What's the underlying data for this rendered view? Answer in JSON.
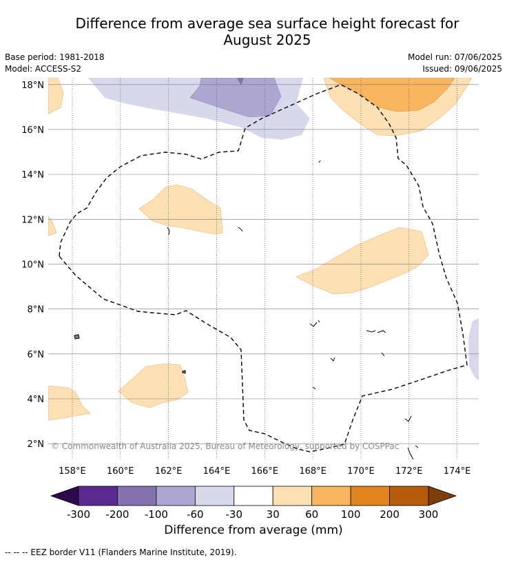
{
  "title_line1": "Difference from average sea surface height forecast for",
  "title_line2": "August 2025",
  "meta": {
    "base_period": "Base period: 1981-2018",
    "model": "Model: ACCESS-S2",
    "model_run": "Model run: 07/06/2025",
    "issued": "Issued: 09/06/2025"
  },
  "map": {
    "lon_range": [
      157,
      174.9
    ],
    "lat_range": [
      1.3,
      18.3
    ],
    "lon_ticks": [
      158,
      160,
      162,
      164,
      166,
      168,
      170,
      172,
      174
    ],
    "lon_labels": [
      "158°E",
      "160°E",
      "162°E",
      "164°E",
      "166°E",
      "168°E",
      "170°E",
      "172°E",
      "174°E"
    ],
    "lat_ticks": [
      2,
      4,
      6,
      8,
      10,
      12,
      14,
      16,
      18
    ],
    "lat_labels": [
      "2°N",
      "4°N",
      "6°N",
      "8°N",
      "10°N",
      "12°N",
      "14°N",
      "16°N",
      "18°N"
    ],
    "gridlines": true,
    "copyright": "© Commonwealth of Australia 2025, Bureau of Meteorology, supported by COSPPac"
  },
  "legend": {
    "title": "Difference from average (mm)",
    "tick_labels": [
      "-300",
      "-200",
      "-100",
      "-60",
      "-30",
      "30",
      "60",
      "100",
      "200",
      "300"
    ],
    "colors": [
      "#5a2a91",
      "#8472b0",
      "#aea5d0",
      "#d8d8ec",
      "#ffffff",
      "#fde0b4",
      "#f9b65e",
      "#e3841c",
      "#b55b09"
    ],
    "extend_low_color": "#2d0a4d",
    "extend_high_color": "#7f3d0c"
  },
  "colors": {
    "light_purple": "#d8d8ec",
    "mid_purple": "#aea5d0",
    "light_orange": "#fde0b4",
    "mid_orange": "#f9b65e"
  },
  "footnote": "--  --  -- EEZ border V11 (Flanders Marine Institute, 2019)."
}
